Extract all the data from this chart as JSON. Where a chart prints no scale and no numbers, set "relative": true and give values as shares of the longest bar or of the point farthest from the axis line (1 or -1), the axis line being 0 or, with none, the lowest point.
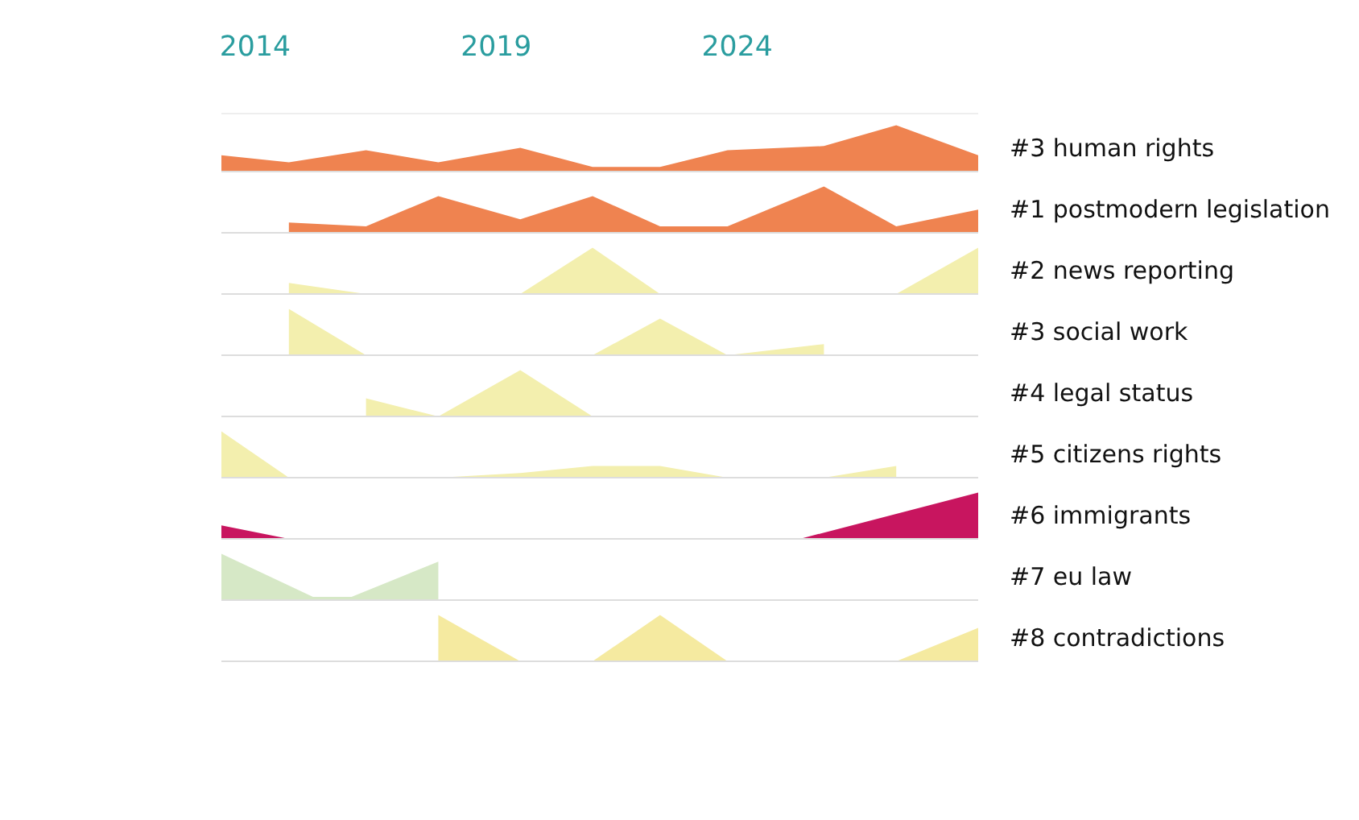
{
  "chart_data": [
    {
      "type": "area",
      "relative": true,
      "xlim": [
        2013.3,
        2029.0
      ],
      "xticks": [
        2014,
        2019,
        2024
      ],
      "tick_labels": "x",
      "series": [
        {
          "name": "#3 human rights",
          "color": "#ef8350",
          "x": [
            2013.3,
            2014.7,
            2016.3,
            2017.8,
            2019.5,
            2021.0,
            2022.4,
            2023.8,
            2025.8,
            2027.3,
            2029.0
          ],
          "values": [
            0.35,
            0.2,
            0.46,
            0.2,
            0.51,
            0.1,
            0.1,
            0.46,
            0.55,
            1,
            0.35
          ]
        }
      ]
    },
    {
      "type": "area",
      "relative": true,
      "xlim": [
        2013.3,
        2029.0
      ],
      "tick_labels": false,
      "series": [
        {
          "name": "#1 postmodern legislation",
          "color": "#ef8350",
          "x": [
            2014.7,
            2016.3,
            2017.8,
            2019.5,
            2021.0,
            2022.4,
            2023.8,
            2025.8,
            2027.3,
            2029.0
          ],
          "values": [
            0.22,
            0.14,
            0.79,
            0.29,
            0.79,
            0.14,
            0.14,
            1,
            0.14,
            0.5
          ]
        }
      ]
    },
    {
      "type": "area",
      "relative": true,
      "xlim": [
        2013.3,
        2029.0
      ],
      "tick_labels": false,
      "series": [
        {
          "name": "#2 news reporting",
          "color": "#f3efae",
          "x": [
            2014.7,
            2016.3,
            2017.8,
            2019.5,
            2021.0,
            2022.4,
            2023.8,
            2025.8,
            2027.3,
            2029.0
          ],
          "values": [
            0.24,
            0,
            0,
            0,
            1,
            0,
            0,
            0,
            0,
            1
          ]
        }
      ]
    },
    {
      "type": "area",
      "relative": true,
      "xlim": [
        2013.3,
        2029.0
      ],
      "tick_labels": false,
      "series": [
        {
          "name": "#3 social work",
          "color": "#f3efae",
          "x": [
            2014.7,
            2016.3,
            2017.8,
            2019.5,
            2021.0,
            2022.4,
            2023.8,
            2025.8
          ],
          "values": [
            1,
            0,
            0,
            0,
            0,
            0.79,
            0,
            0.24
          ]
        }
      ]
    },
    {
      "type": "area",
      "relative": true,
      "xlim": [
        2013.3,
        2029.0
      ],
      "tick_labels": false,
      "series": [
        {
          "name": "#4 legal status",
          "color": "#f3efae",
          "x": [
            2016.3,
            2017.8,
            2019.5,
            2021.0,
            2022.4,
            2023.8
          ],
          "values": [
            0.39,
            0,
            1,
            0,
            0,
            0
          ]
        }
      ]
    },
    {
      "type": "area",
      "relative": true,
      "xlim": [
        2013.3,
        2029.0
      ],
      "tick_labels": false,
      "series": [
        {
          "name": "#5 citizens rights",
          "color": "#f3efae",
          "x": [
            2013.3,
            2014.7,
            2016.3,
            2017.8,
            2019.5,
            2021.0,
            2022.4,
            2023.8,
            2025.8,
            2027.3
          ],
          "values": [
            1,
            0,
            0,
            0,
            0.1,
            0.25,
            0.25,
            0,
            0,
            0.25
          ]
        }
      ]
    },
    {
      "type": "area",
      "relative": true,
      "xlim": [
        2013.3,
        2029.0
      ],
      "tick_labels": false,
      "series": [
        {
          "name": "#6 immigrants",
          "color": "#c8155f",
          "x": [
            2013.3,
            2014.7,
            2016.3,
            2017.8,
            2019.5,
            2021.0,
            2022.4,
            2023.8,
            2025.3,
            2029.0
          ],
          "values": [
            0.29,
            0,
            0,
            0,
            0,
            0,
            0,
            0,
            0,
            1
          ]
        }
      ]
    },
    {
      "type": "area",
      "relative": true,
      "xlim": [
        2013.3,
        2029.0
      ],
      "tick_labels": false,
      "series": [
        {
          "name": "#7 eu law",
          "color": "#d6e8c6",
          "x": [
            2013.3,
            2015.2,
            2016.0,
            2017.8
          ],
          "values": [
            1,
            0.07,
            0.07,
            0.83
          ]
        }
      ]
    },
    {
      "type": "area",
      "relative": true,
      "xlim": [
        2013.3,
        2029.0
      ],
      "tick_labels": false,
      "series": [
        {
          "name": "#8 contradictions",
          "color": "#f5eaa0",
          "x": [
            2017.8,
            2019.5,
            2021.0,
            2022.4,
            2023.8,
            2025.8,
            2027.3,
            2029.0
          ],
          "values": [
            1,
            0,
            0,
            1,
            0,
            0,
            0,
            0.72
          ]
        }
      ]
    }
  ]
}
